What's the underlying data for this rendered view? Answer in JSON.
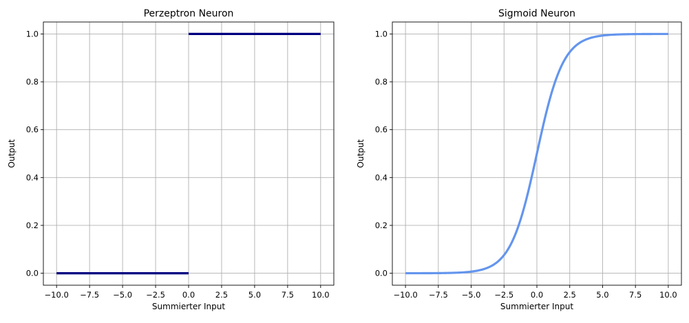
{
  "chart_data": [
    {
      "type": "line",
      "function": "step",
      "title": "Perzeptron Neuron",
      "xlabel": "Summierter Input",
      "ylabel": "Output",
      "xlim": [
        -11,
        11
      ],
      "ylim": [
        -0.05,
        1.05
      ],
      "grid": true,
      "xticks": [
        -10.0,
        -7.5,
        -5.0,
        -2.5,
        0.0,
        2.5,
        5.0,
        7.5,
        10.0
      ],
      "xtick_labels": [
        "−10.0",
        "−7.5",
        "−5.0",
        "−2.5",
        "0.0",
        "2.5",
        "5.0",
        "7.5",
        "10.0"
      ],
      "yticks": [
        0.0,
        0.2,
        0.4,
        0.6,
        0.8,
        1.0
      ],
      "ytick_labels": [
        "0.0",
        "0.2",
        "0.4",
        "0.6",
        "0.8",
        "1.0"
      ],
      "color": "#000080",
      "segments": [
        {
          "x": [
            -10,
            0
          ],
          "y": [
            0,
            0
          ]
        },
        {
          "x": [
            0,
            10
          ],
          "y": [
            1,
            1
          ]
        }
      ]
    },
    {
      "type": "line",
      "function": "sigmoid",
      "title": "Sigmoid Neuron",
      "xlabel": "Summierter Input",
      "ylabel": "Output",
      "xlim": [
        -11,
        11
      ],
      "ylim": [
        -0.05,
        1.05
      ],
      "grid": true,
      "xticks": [
        -10.0,
        -7.5,
        -5.0,
        -2.5,
        0.0,
        2.5,
        5.0,
        7.5,
        10.0
      ],
      "xtick_labels": [
        "−10.0",
        "−7.5",
        "−5.0",
        "−2.5",
        "0.0",
        "2.5",
        "5.0",
        "7.5",
        "10.0"
      ],
      "yticks": [
        0.0,
        0.2,
        0.4,
        0.6,
        0.8,
        1.0
      ],
      "ytick_labels": [
        "0.0",
        "0.2",
        "0.4",
        "0.6",
        "0.8",
        "1.0"
      ],
      "color": "#6495ED",
      "x": [
        -10,
        -7.5,
        -5,
        -4,
        -3,
        -2.5,
        -2,
        -1.5,
        -1,
        -0.5,
        0,
        0.5,
        1,
        1.5,
        2,
        2.5,
        3,
        4,
        5,
        7.5,
        10
      ],
      "y": [
        0.0,
        0.0006,
        0.0067,
        0.018,
        0.047,
        0.076,
        0.119,
        0.182,
        0.269,
        0.378,
        0.5,
        0.622,
        0.731,
        0.818,
        0.881,
        0.924,
        0.953,
        0.982,
        0.993,
        0.999,
        1.0
      ]
    }
  ]
}
